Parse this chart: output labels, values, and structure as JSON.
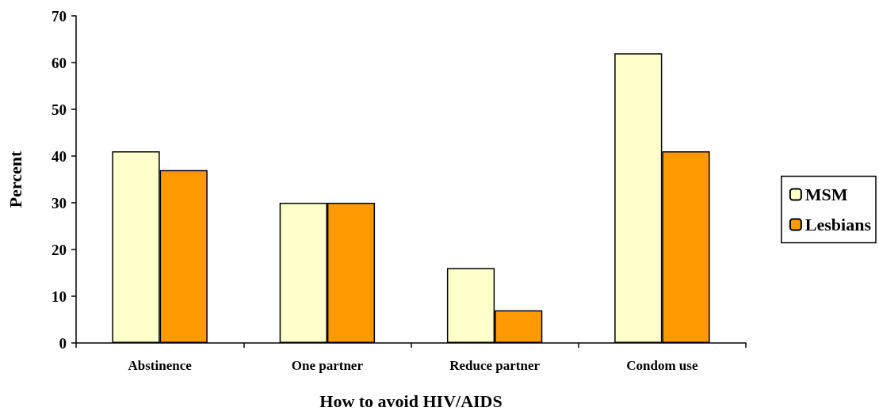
{
  "chart_data": {
    "type": "bar",
    "xlabel": "How to avoid HIV/AIDS",
    "ylabel": "Percent",
    "categories": [
      "Abstinence",
      "One partner",
      "Reduce partner",
      "Condom use"
    ],
    "series": [
      {
        "name": "MSM",
        "color": "#ffffcc",
        "values": [
          41,
          30,
          16,
          62
        ]
      },
      {
        "name": "Lesbians",
        "color": "#ff9900",
        "values": [
          37,
          30,
          7,
          41
        ]
      }
    ],
    "ylim": [
      0,
      70
    ],
    "yticks": [
      0,
      10,
      20,
      30,
      40,
      50,
      60,
      70
    ],
    "grid": false,
    "legend": "right"
  }
}
